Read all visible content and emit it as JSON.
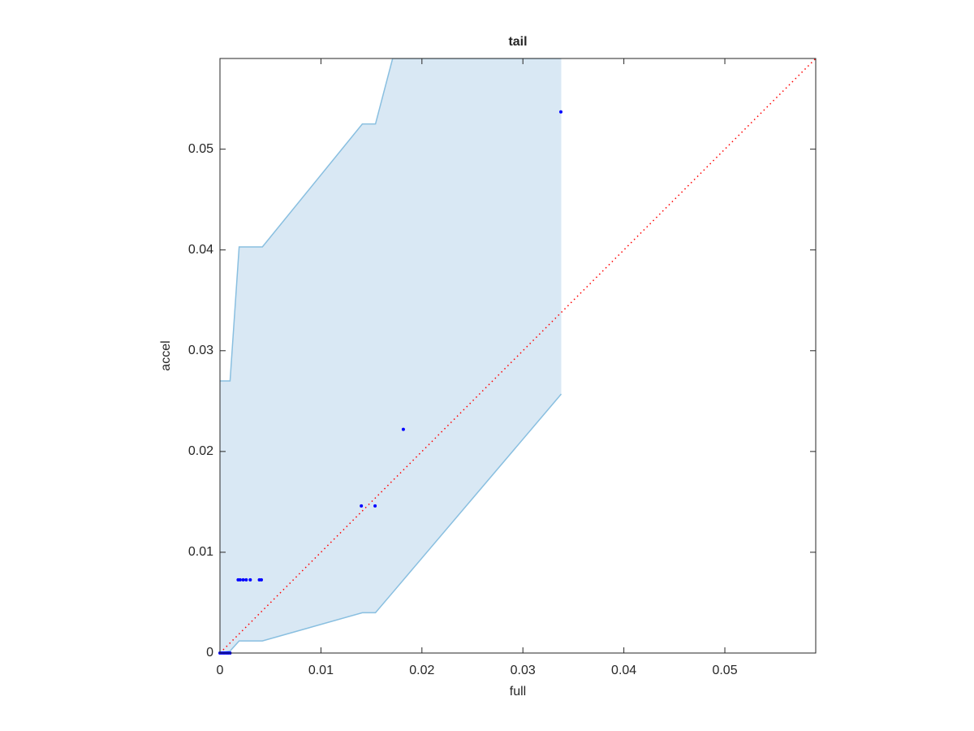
{
  "chart_data": {
    "type": "scatter",
    "title": "tail",
    "x_label": "full",
    "y_label": "accel",
    "xlim": [
      0,
      0.059
    ],
    "ylim": [
      0,
      0.059
    ],
    "xticks": [
      0,
      0.01,
      0.02,
      0.03,
      0.04,
      0.05
    ],
    "yticks": [
      0,
      0.01,
      0.02,
      0.03,
      0.04,
      0.05
    ],
    "band": {
      "color": "#d9e8f4",
      "edge_color": "#89bfe0",
      "x": [
        0,
        0.001,
        0.0019,
        0.0042,
        0.0141,
        0.0154,
        0.0171,
        0.0338
      ],
      "lower": [
        0,
        0.0002,
        0.0012,
        0.0012,
        0.004,
        0.004,
        0.006,
        0.0257
      ],
      "upper": [
        0.027,
        0.027,
        0.0403,
        0.0403,
        0.0525,
        0.0525,
        0.059,
        0.059
      ]
    },
    "reference_line": {
      "color": "#ff0000",
      "x": [
        0,
        0.059
      ],
      "y": [
        0,
        0.059
      ]
    },
    "points": {
      "color": "#0000ff",
      "x": [
        0,
        0.0002,
        0.0004,
        0.0006,
        0.0008,
        0.001,
        0.0018,
        0.002,
        0.0023,
        0.0026,
        0.003,
        0.0039,
        0.0041,
        0.014,
        0.01536,
        0.01816,
        0.03376
      ],
      "y": [
        0,
        0,
        0,
        0,
        0,
        0,
        0.00726,
        0.00726,
        0.00726,
        0.00726,
        0.00726,
        0.00726,
        0.00726,
        0.0146,
        0.0146,
        0.0222,
        0.0537
      ]
    }
  }
}
